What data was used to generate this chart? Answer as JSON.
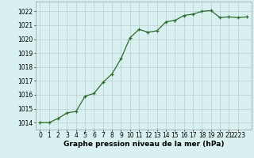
{
  "x": [
    0,
    1,
    2,
    3,
    4,
    5,
    6,
    7,
    8,
    9,
    10,
    11,
    12,
    13,
    14,
    15,
    16,
    17,
    18,
    19,
    20,
    21,
    22,
    23
  ],
  "y": [
    1014.0,
    1014.0,
    1014.3,
    1014.7,
    1014.8,
    1015.9,
    1016.1,
    1016.9,
    1017.5,
    1018.6,
    1020.1,
    1020.7,
    1020.5,
    1020.6,
    1021.25,
    1021.35,
    1021.7,
    1021.8,
    1022.0,
    1022.05,
    1021.55,
    1021.6,
    1021.55,
    1021.6
  ],
  "line_color": "#2d6a2d",
  "marker": "+",
  "marker_size": 3.5,
  "marker_edge_width": 0.9,
  "bg_color": "#d8f0f0",
  "grid_color": "#b8d0d0",
  "xlabel": "Graphe pression niveau de la mer (hPa)",
  "xlabel_fontsize": 6.5,
  "ylim": [
    1013.5,
    1022.7
  ],
  "xlim": [
    -0.5,
    23.5
  ],
  "tick_fontsize": 5.5,
  "line_width": 0.9
}
